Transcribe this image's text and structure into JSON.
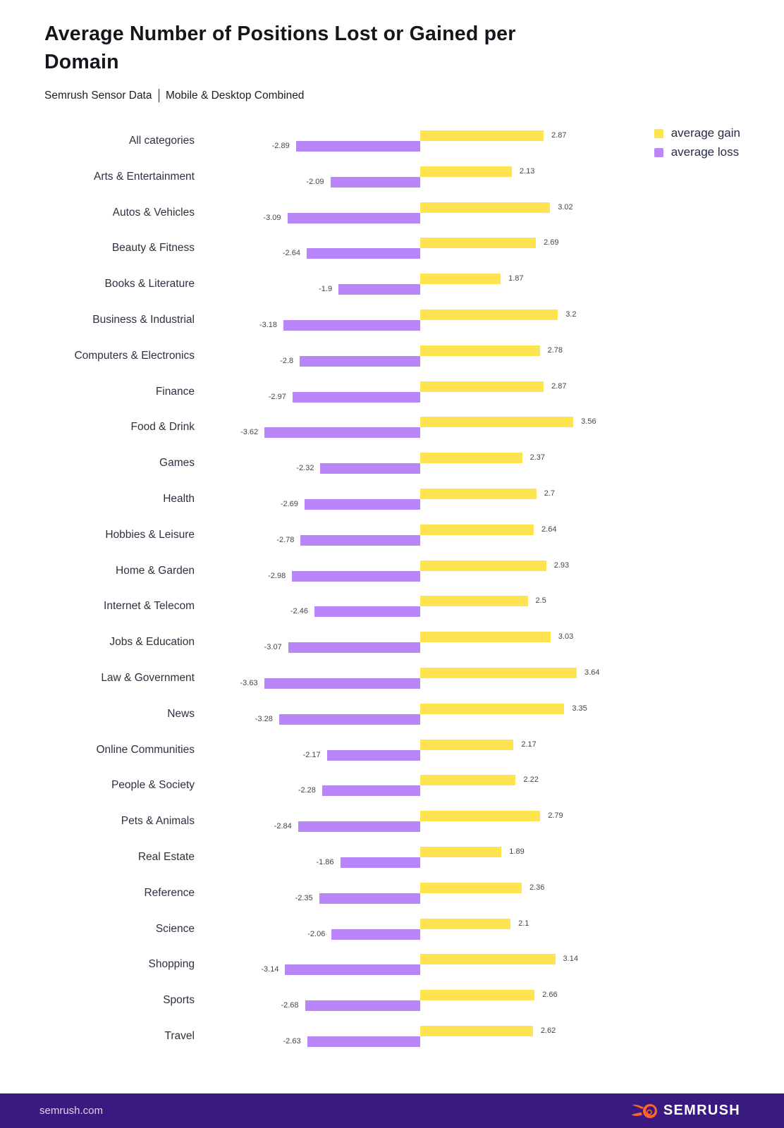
{
  "header": {
    "title_lines": [
      "Average Number of Positions Lost or Gained per",
      "Domain"
    ],
    "subtitle_left": "Semrush Sensor Data",
    "subtitle_right": "Mobile & Desktop Combined"
  },
  "chart_data": {
    "type": "bar",
    "orientation": "horizontal-diverging",
    "title": "Average Number of Positions Lost or Gained per Domain",
    "subtitle": "Semrush Sensor Data | Mobile & Desktop Combined",
    "grid": false,
    "legend_position": "top-right",
    "xlim": [
      -4,
      4
    ],
    "baseline": 0,
    "value_labels": true,
    "categories": [
      "All categories",
      "Arts & Entertainment",
      "Autos & Vehicles",
      "Beauty & Fitness",
      "Books & Literature",
      "Business & Industrial",
      "Computers & Electronics",
      "Finance",
      "Food & Drink",
      "Games",
      "Health",
      "Hobbies & Leisure",
      "Home & Garden",
      "Internet & Telecom",
      "Jobs & Education",
      "Law & Government",
      "News",
      "Online Communities",
      "People & Society",
      "Pets & Animals",
      "Real Estate",
      "Reference",
      "Science",
      "Shopping",
      "Sports",
      "Travel"
    ],
    "series": [
      {
        "name": "average gain",
        "color": "#FFE452",
        "values": [
          2.87,
          2.13,
          3.02,
          2.69,
          1.87,
          3.2,
          2.78,
          2.87,
          3.56,
          2.37,
          2.7,
          2.64,
          2.93,
          2.5,
          3.03,
          3.64,
          3.35,
          2.17,
          2.22,
          2.79,
          1.89,
          2.36,
          2.1,
          3.14,
          2.66,
          2.62
        ]
      },
      {
        "name": "average loss",
        "color": "#B986FA",
        "values": [
          -2.89,
          -2.09,
          -3.09,
          -2.64,
          -1.9,
          -3.18,
          -2.8,
          -2.97,
          -3.62,
          -2.32,
          -2.69,
          -2.78,
          -2.98,
          -2.46,
          -3.07,
          -3.63,
          -3.28,
          -2.17,
          -2.28,
          -2.84,
          -1.86,
          -2.35,
          -2.06,
          -3.14,
          -2.68,
          -2.63
        ]
      }
    ]
  },
  "footer": {
    "site": "semrush.com",
    "brand": "SEMRUSH",
    "background_color": "#3A1A80",
    "flame_color": "#FF642D"
  }
}
